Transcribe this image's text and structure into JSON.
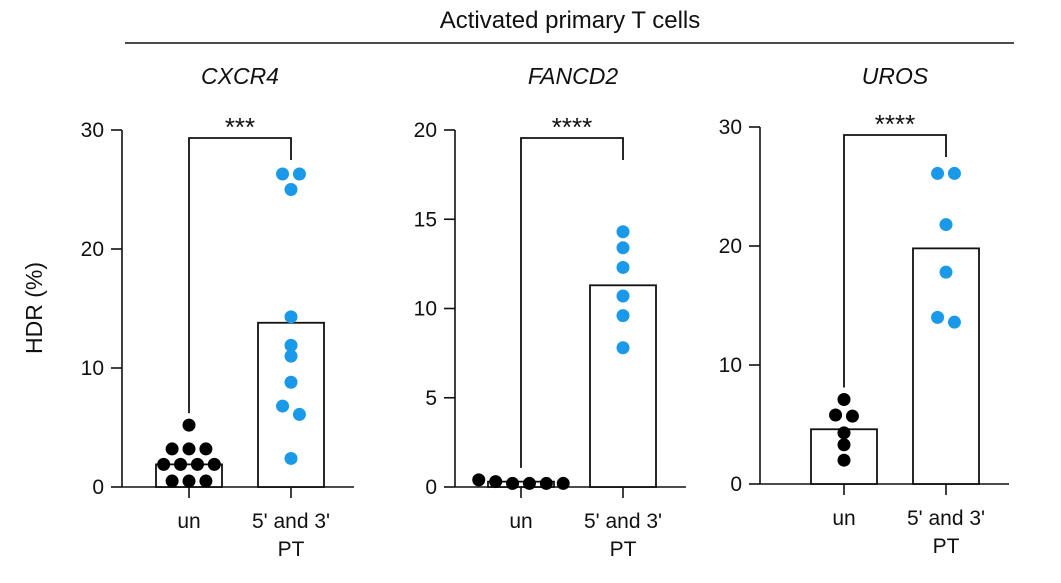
{
  "super_title": "Activated primary T cells",
  "ylabel": "HDR (%)",
  "colors": {
    "un": "#000000",
    "treated": "#1a99e8",
    "axis": "#111111"
  },
  "chart_data": [
    {
      "type": "bar",
      "title": "CXCR4",
      "ylabel": "HDR (%)",
      "ylim": [
        0,
        30
      ],
      "yticks": [
        "0",
        "10",
        "20",
        "30"
      ],
      "categories": [
        "un",
        "5' and 3'\nPT"
      ],
      "values": [
        1.9,
        13.8
      ],
      "points": [
        [
          0.5,
          0.5,
          0.5,
          1.9,
          1.9,
          1.9,
          1.9,
          3.2,
          3.2,
          3.2,
          5.2
        ],
        [
          26.3,
          26.3,
          25.0,
          14.3,
          11.9,
          11.0,
          8.8,
          6.8,
          6.1,
          2.4
        ]
      ],
      "significance": "***",
      "grid": false
    },
    {
      "type": "bar",
      "title": "FANCD2",
      "ylabel": "",
      "ylim": [
        0,
        20
      ],
      "yticks": [
        "0",
        "5",
        "10",
        "15",
        "20"
      ],
      "categories": [
        "un",
        "5' and 3'\nPT"
      ],
      "values": [
        0.3,
        11.3
      ],
      "points": [
        [
          0.2,
          0.4,
          0.3,
          0.2,
          0.2,
          0.2
        ],
        [
          14.3,
          13.4,
          12.3,
          10.7,
          9.6,
          7.8
        ]
      ],
      "significance": "****",
      "grid": false
    },
    {
      "type": "bar",
      "title": "UROS",
      "ylabel": "",
      "ylim": [
        0,
        30
      ],
      "yticks": [
        "0",
        "10",
        "20",
        "30"
      ],
      "categories": [
        "un",
        "5' and 3'\nPT"
      ],
      "values": [
        4.6,
        19.8
      ],
      "points": [
        [
          7.1,
          5.8,
          5.7,
          4.3,
          3.3,
          2.0
        ],
        [
          26.1,
          26.1,
          21.8,
          17.8,
          14.0,
          13.6
        ]
      ],
      "significance": "****",
      "grid": false
    }
  ]
}
